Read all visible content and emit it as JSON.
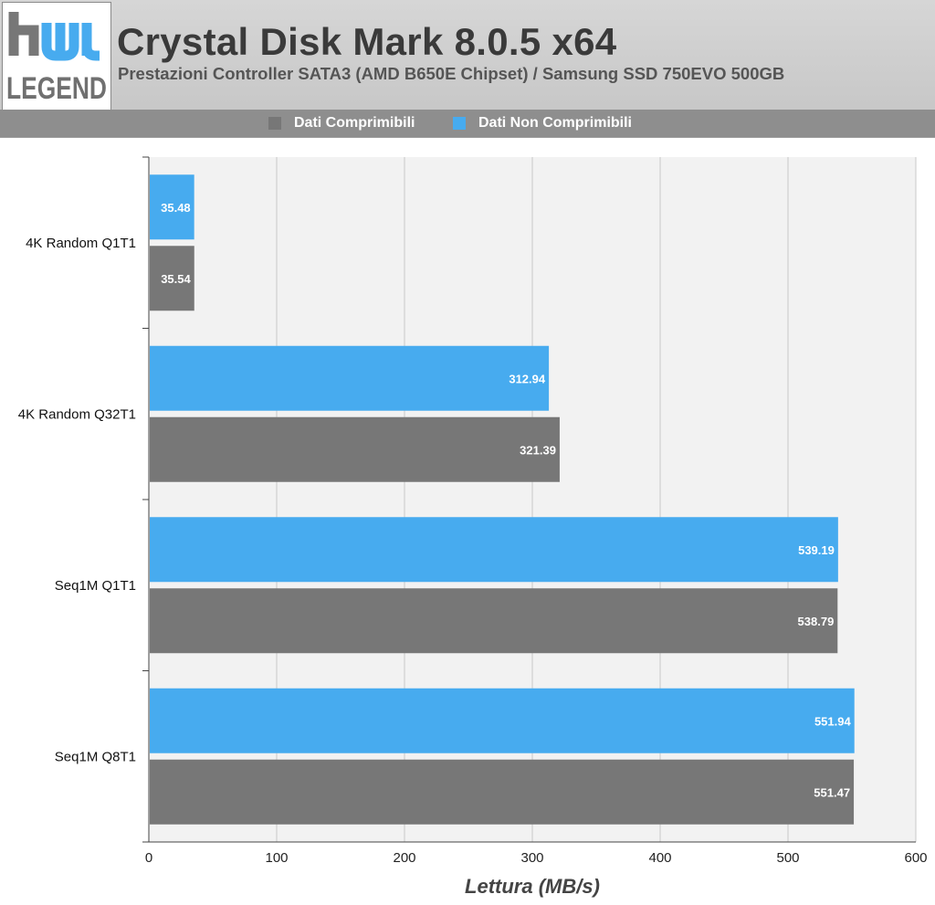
{
  "logo": {
    "text_top": "hw",
    "text_bottom": "LEGEND"
  },
  "header": {
    "title": "Crystal Disk Mark 8.0.5 x64",
    "subtitle": "Prestazioni Controller SATA3 (AMD B650E Chipset) / Samsung SSD 750EVO 500GB"
  },
  "colors": {
    "grey_series": "#777777",
    "blue_series": "#47abef",
    "plot_bg": "#f2f2f2"
  },
  "chart_data": {
    "type": "bar",
    "orientation": "horizontal",
    "categories": [
      "4K Random Q1T1",
      "4K Random Q32T1",
      "Seq1M Q1T1",
      "Seq1M Q8T1"
    ],
    "series": [
      {
        "name": "Dati Comprimibili",
        "color": "#777777",
        "values": [
          35.54,
          321.39,
          538.79,
          551.47
        ]
      },
      {
        "name": "Dati Non Comprimibili",
        "color": "#47abef",
        "values": [
          35.48,
          312.94,
          539.19,
          551.94
        ]
      }
    ],
    "xlabel": "Lettura (MB/s)",
    "xlim": [
      0,
      600
    ],
    "xticks": [
      "0",
      "100",
      "200",
      "300",
      "400",
      "500",
      "600"
    ],
    "grid": true,
    "legend_position": "top"
  }
}
